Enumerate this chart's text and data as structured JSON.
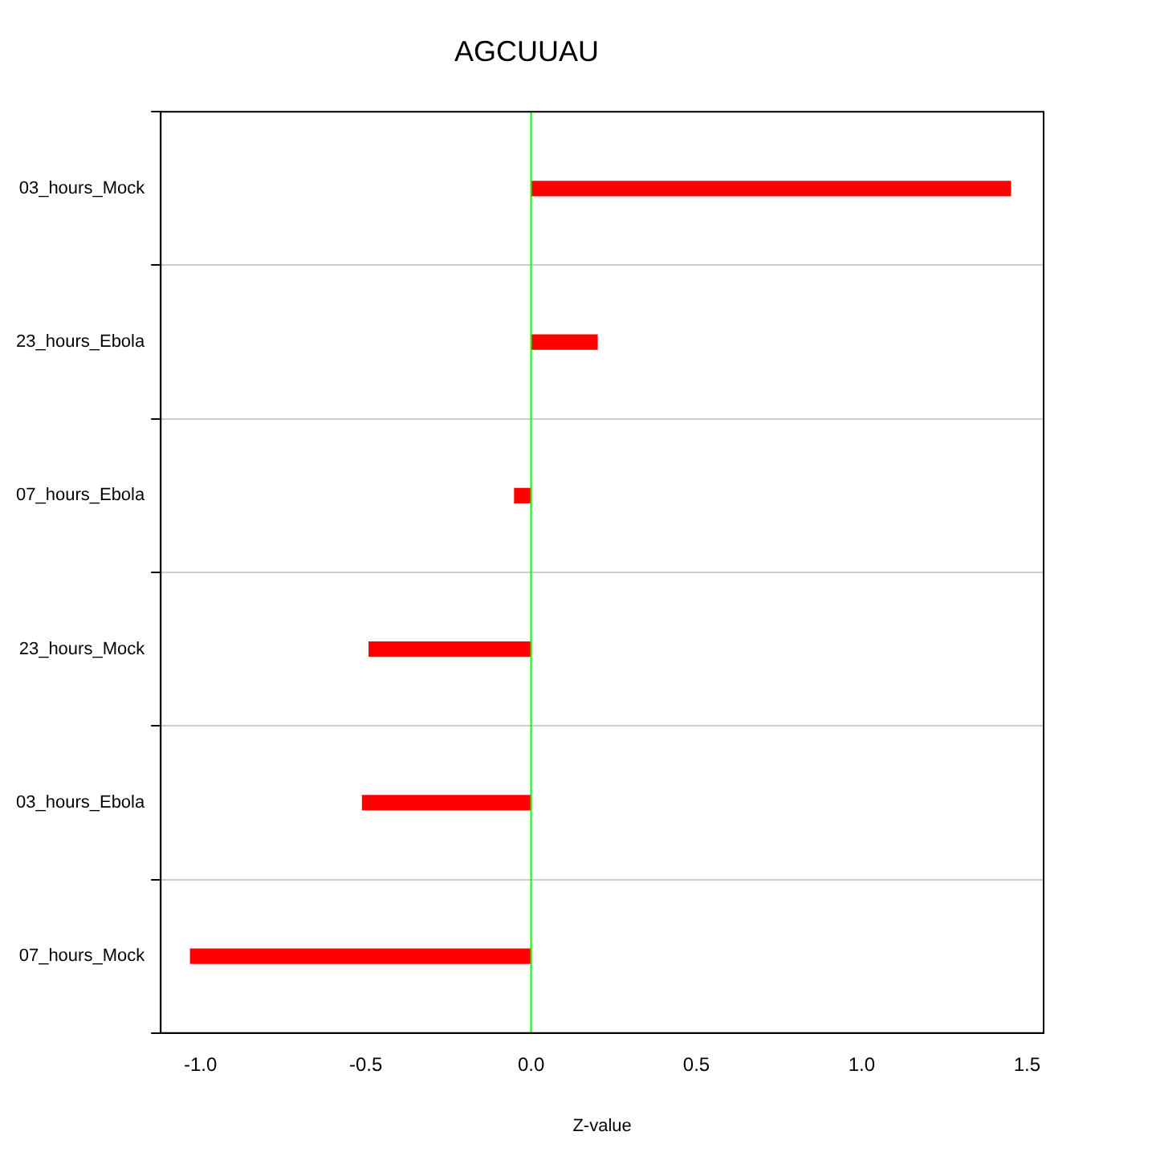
{
  "chart_data": {
    "type": "bar",
    "orientation": "horizontal",
    "title": "AGCUUAU",
    "xlabel": "Z-value",
    "categories": [
      "03_hours_Mock",
      "23_hours_Ebola",
      "07_hours_Ebola",
      "23_hours_Mock",
      "03_hours_Ebola",
      "07_hours_Mock"
    ],
    "values": [
      1.45,
      0.2,
      -0.05,
      -0.49,
      -0.51,
      -1.03
    ],
    "color": "#ff0000",
    "xlim": [
      -1.12,
      1.55
    ],
    "xticks": [
      {
        "value": -1,
        "label": "-1.0"
      },
      -0.5,
      {
        "value": 0,
        "label": "0.0"
      },
      0.5,
      {
        "value": 1,
        "label": "1.0"
      },
      1.5
    ],
    "grid": "y",
    "ref_lines": [
      {
        "axis": "x",
        "value": 0,
        "color": "#00ff00"
      }
    ]
  }
}
